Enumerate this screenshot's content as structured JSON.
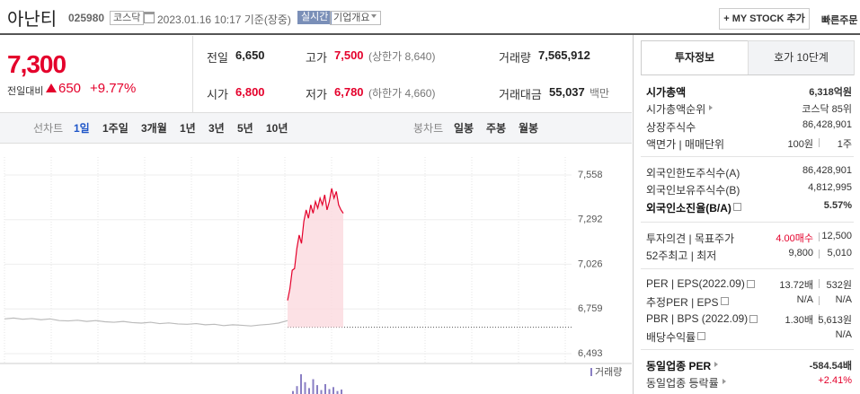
{
  "header": {
    "name": "아난티",
    "code": "025980",
    "market": "코스닥",
    "datetime": "2023.01.16 10:17 기준(장중)",
    "realtime": "실시간",
    "company_info": "기업개요",
    "my_stock": "+ MY STOCK 추가",
    "quick_order": "빠른주문"
  },
  "price": {
    "current": "7,300",
    "change_label": "전일대비",
    "change": "650",
    "change_pct": "+9.77%"
  },
  "summary": [
    [
      {
        "label": "전일",
        "value": "6,650"
      },
      {
        "label": "고가",
        "value": "7,500",
        "note": "(상한가 8,640)",
        "color": "#e4002b"
      },
      {
        "label": "거래량",
        "value": "7,565,912"
      }
    ],
    [
      {
        "label": "시가",
        "value": "6,800",
        "color": "#e4002b"
      },
      {
        "label": "저가",
        "value": "6,780",
        "note": "(하한가 4,660)",
        "color": "#e4002b"
      },
      {
        "label": "거래대금",
        "value": "55,037",
        "note": "백만"
      }
    ]
  ],
  "chart_tabs": {
    "line_label": "선차트",
    "line": [
      "1일",
      "1주일",
      "3개월",
      "1년",
      "3년",
      "5년",
      "10년"
    ],
    "selected": 0,
    "candle_label": "봉차트",
    "candle": [
      "일봉",
      "주봉",
      "월봉"
    ]
  },
  "chart": {
    "ylim": [
      6493,
      7558
    ],
    "yticks": [
      {
        "value": 7558,
        "label": "7,558"
      },
      {
        "value": 7292,
        "label": "7,292"
      },
      {
        "value": 7026,
        "label": "7,026"
      },
      {
        "value": 6759,
        "label": "6,759"
      },
      {
        "value": 6493,
        "label": "6,493"
      }
    ],
    "reference": 6650,
    "volume_label": "거래량",
    "series": [
      {
        "color": "#bbbbbb",
        "values": [
          6700,
          6705,
          6698,
          6702,
          6695,
          6700,
          6690,
          6688,
          6692,
          6685,
          6690,
          6683,
          6680,
          6685,
          6678,
          6675,
          6680,
          6672,
          6676,
          6670,
          6668,
          6672,
          6665,
          6668,
          6660,
          6665,
          6662,
          6658,
          6664,
          6668,
          6675,
          6690
        ]
      },
      {
        "color": "#e4002b",
        "fill": "#fbd9de",
        "values": [
          6810,
          6880,
          6990,
          7000,
          7120,
          7200,
          7150,
          7280,
          7350,
          7300,
          7380,
          7330,
          7400,
          7360,
          7420,
          7380,
          7440,
          7350,
          7400,
          7478,
          7420,
          7460,
          7380,
          7350,
          7330
        ]
      }
    ],
    "volume": {
      "color": "#8a7fc4",
      "values": [
        30000,
        80000,
        200000,
        120000,
        60000,
        150000,
        90000,
        40000,
        100000,
        50000,
        70000,
        30000,
        45000
      ]
    }
  },
  "invest_tabs": [
    "투자정보",
    "호가 10단계"
  ],
  "invest": [
    [
      {
        "label": "시가총액",
        "value": "6,318억원",
        "bold": true
      },
      {
        "label": "시가총액순위",
        "more": true,
        "value": "코스닥 85위"
      },
      {
        "label": "상장주식수",
        "value": "86,428,901"
      },
      {
        "label": "액면가 | 매매단위",
        "value": "100원",
        "value2": "1주"
      }
    ],
    [
      {
        "label": "외국인한도주식수(A)",
        "value": "86,428,901"
      },
      {
        "label": "외국인보유주식수(B)",
        "value": "4,812,995"
      },
      {
        "label": "외국인소진율(B/A)",
        "help": true,
        "value": "5.57%",
        "bold": true
      }
    ],
    [
      {
        "label": "투자의견 | 목표주가",
        "value": "4.00매수",
        "color": "#e4002b",
        "value2": "12,500"
      },
      {
        "label": "52주최고 | 최저",
        "value": "9,800",
        "value2": "5,010"
      }
    ],
    [
      {
        "label": "PER | EPS(2022.09)",
        "help": true,
        "value": "13.72배",
        "value2": "532원"
      },
      {
        "label": "추정PER | EPS",
        "help": true,
        "value": "N/A",
        "value2": "N/A"
      },
      {
        "label": "PBR | BPS (2022.09)",
        "help": true,
        "value": "1.30배",
        "value2": "5,613원"
      },
      {
        "label": "배당수익률",
        "help": true,
        "value": "N/A"
      }
    ],
    [
      {
        "label": "동일업종 PER",
        "more": true,
        "value": "-584.54배",
        "bold": true
      },
      {
        "label": "동일업종 등락률",
        "more": true,
        "value": "+2.41%",
        "color": "#e4002b"
      }
    ]
  ]
}
